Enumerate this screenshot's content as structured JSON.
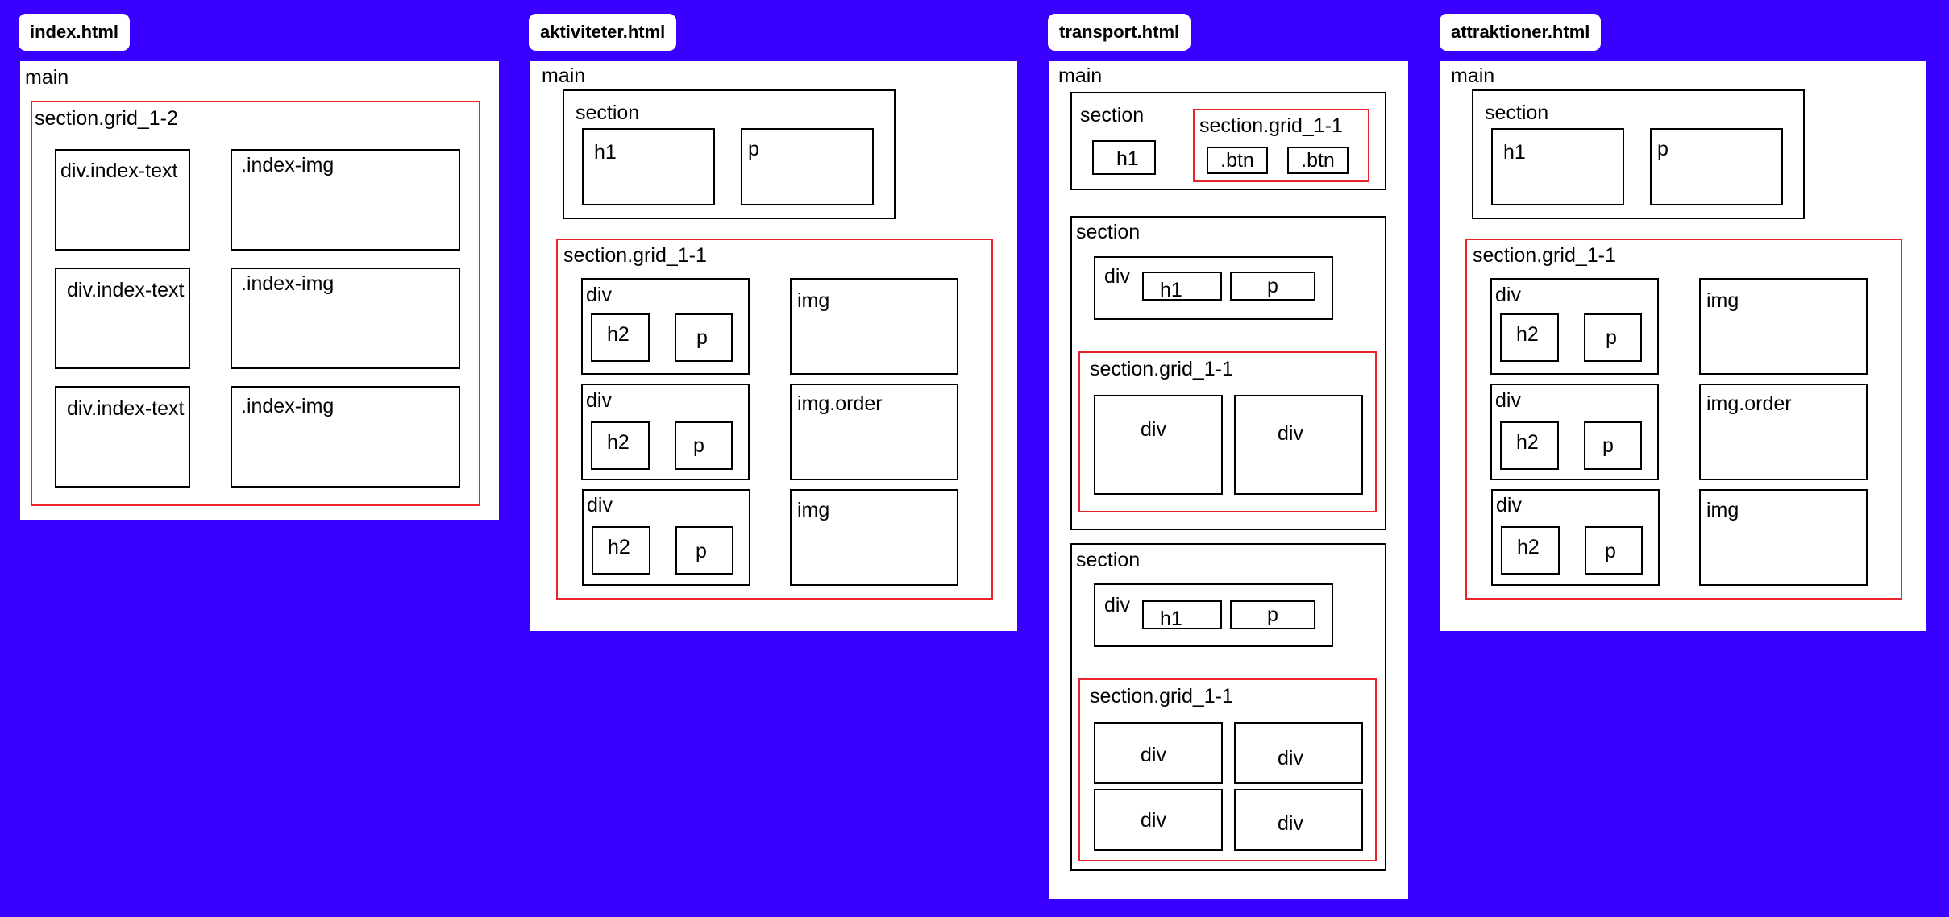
{
  "pages": {
    "index": {
      "title": "index.html",
      "main": "main",
      "grid_label": "section.grid_1-2",
      "text_label": "div.index-text",
      "img_label": ".index-img"
    },
    "aktiviteter": {
      "title": "aktiviteter.html",
      "main": "main",
      "section": "section",
      "h1": "h1",
      "p": "p",
      "grid_label": "section.grid_1-1",
      "div": "div",
      "h2": "h2",
      "img": "img",
      "img_order": "img.order"
    },
    "transport": {
      "title": "transport.html",
      "main": "main",
      "section": "section",
      "h1": "h1",
      "p": "p",
      "grid_label": "section.grid_1-1",
      "btn": ".btn",
      "div": "div"
    },
    "attraktioner": {
      "title": "attraktioner.html",
      "main": "main",
      "section": "section",
      "h1": "h1",
      "p": "p",
      "grid_label": "section.grid_1-1",
      "div": "div",
      "h2": "h2",
      "img": "img",
      "img_order": "img.order"
    }
  }
}
